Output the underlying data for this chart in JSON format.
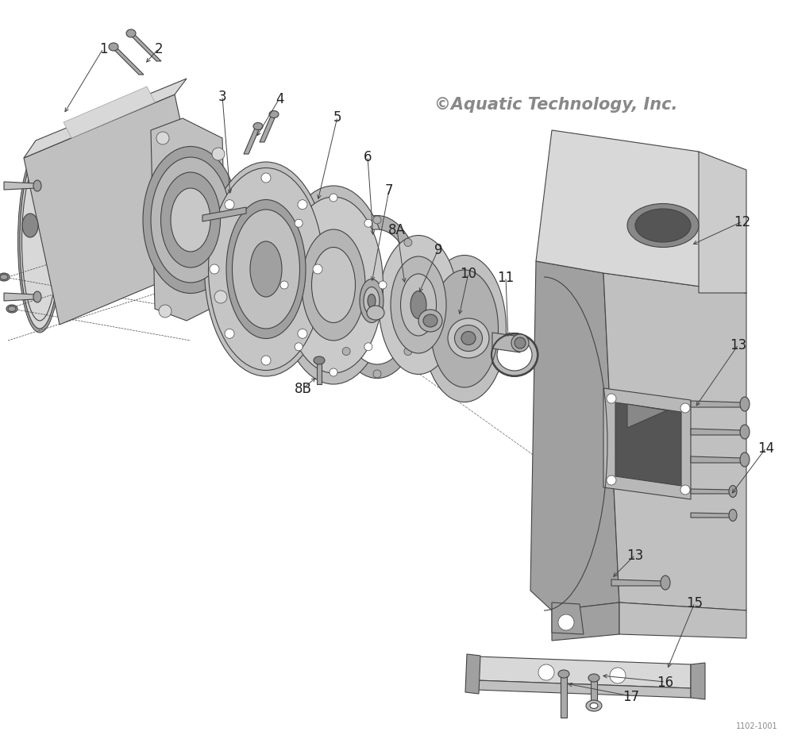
{
  "copyright_text": "©Aquatic Technology, Inc.",
  "copyright_color": "#888888",
  "background_color": "#ffffff",
  "label_fontsize": 12,
  "label_color": "#222222",
  "line_color": "#444444",
  "line_width": 0.8,
  "part_number_small": "1102-1001",
  "figsize": [
    10.0,
    9.37
  ],
  "dpi": 100
}
